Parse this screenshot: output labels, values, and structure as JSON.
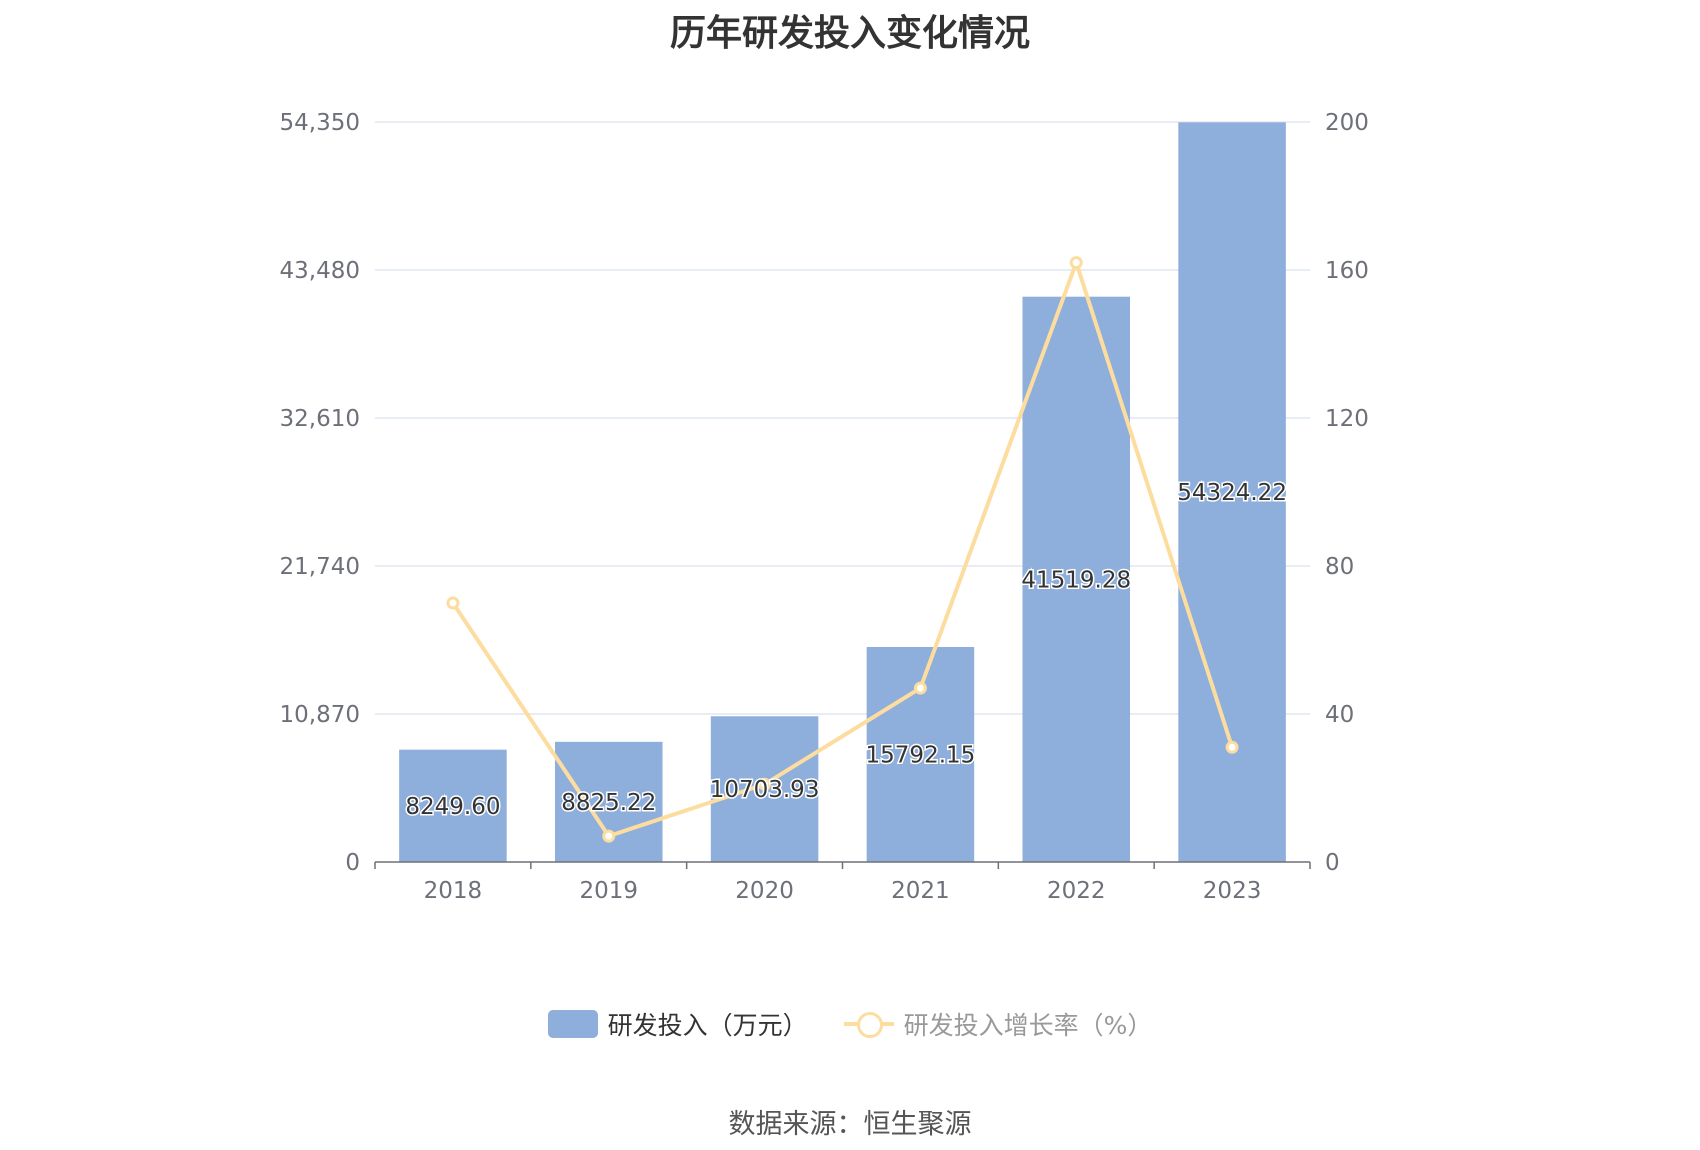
{
  "chart_data": {
    "type": "bar",
    "title": "历年研发投入变化情况",
    "categories": [
      "2018",
      "2019",
      "2020",
      "2021",
      "2022",
      "2023"
    ],
    "series": [
      {
        "name": "研发投入（万元）",
        "type": "bar",
        "axis": "left",
        "values": [
          8249.6,
          8825.22,
          10703.93,
          15792.15,
          41519.28,
          54324.22
        ],
        "labels": [
          "8249.60",
          "8825.22",
          "10703.93",
          "15792.15",
          "41519.28",
          "54324.22"
        ],
        "color": "#8eaedb"
      },
      {
        "name": "研发投入增长率（%）",
        "type": "line",
        "axis": "right",
        "values": [
          70,
          7,
          21,
          47,
          162,
          31
        ],
        "color": "#fddd9f"
      }
    ],
    "y_left": {
      "ylim": [
        0,
        54350
      ],
      "ticks": [
        "0",
        "10,870",
        "21,740",
        "32,610",
        "43,480",
        "54,350"
      ]
    },
    "y_right": {
      "ylim": [
        0,
        200
      ],
      "ticks": [
        "0",
        "40",
        "80",
        "120",
        "160",
        "200"
      ]
    },
    "grid": true,
    "legend": "bottom"
  },
  "footer": {
    "source": "数据来源：恒生聚源"
  }
}
